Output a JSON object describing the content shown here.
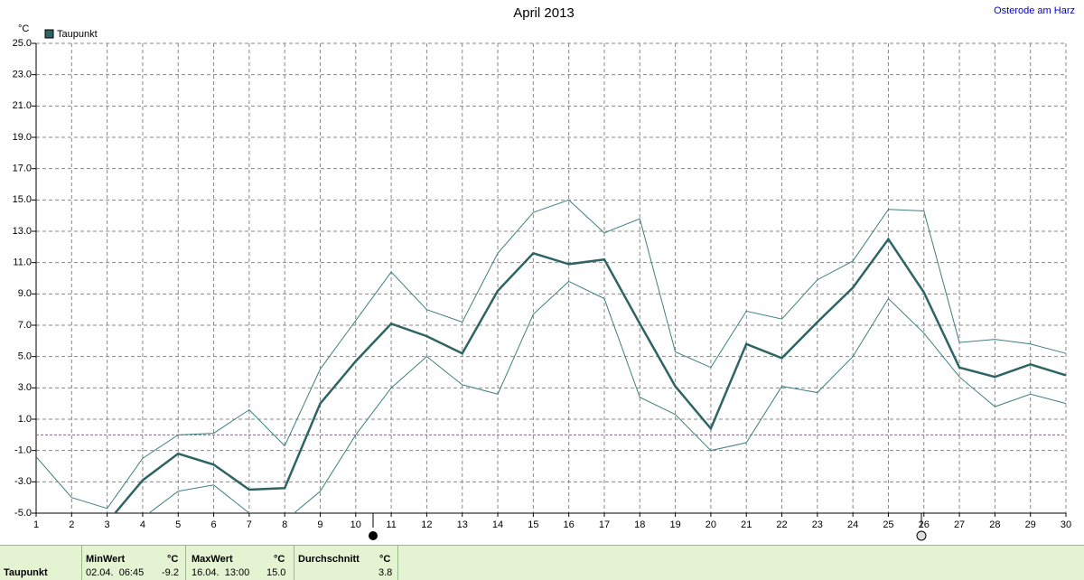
{
  "chart_data": {
    "type": "line",
    "title": "April 2013",
    "location": "Osterode am Harz",
    "y_label": "°C",
    "x": [
      1,
      2,
      3,
      4,
      5,
      6,
      7,
      8,
      9,
      10,
      11,
      12,
      13,
      14,
      15,
      16,
      17,
      18,
      19,
      20,
      21,
      22,
      23,
      24,
      25,
      26,
      27,
      28,
      29,
      30
    ],
    "series": [
      {
        "name": "Taupunkt",
        "color": "#2f6464",
        "values": [
          null,
          null,
          -5.6,
          -2.9,
          -1.2,
          -1.9,
          -3.5,
          -3.4,
          2.0,
          4.7,
          7.1,
          6.3,
          5.2,
          9.2,
          11.6,
          10.9,
          11.2,
          7.1,
          3.1,
          0.4,
          5.8,
          4.9,
          7.2,
          9.4,
          12.5,
          9.1,
          4.3,
          3.7,
          4.5,
          3.8
        ]
      },
      {
        "color": "#3f7f7f",
        "values": [
          -1.4,
          -4.0,
          -4.7,
          -1.5,
          0.0,
          0.1,
          1.6,
          -0.7,
          4.2,
          7.3,
          10.4,
          8.0,
          7.2,
          11.6,
          14.2,
          15.0,
          12.9,
          13.8,
          5.3,
          4.3,
          7.9,
          7.4,
          9.9,
          11.1,
          14.4,
          14.3,
          5.9,
          6.1,
          5.8,
          5.2
        ]
      },
      {
        "color": "#3f7f7f",
        "values": [
          null,
          null,
          null,
          -5.3,
          -3.6,
          -3.2,
          -5.0,
          -5.5,
          -3.6,
          0.0,
          3.0,
          5.0,
          3.2,
          2.6,
          7.7,
          9.8,
          8.7,
          2.4,
          1.3,
          -1.0,
          -0.5,
          3.1,
          2.7,
          5.0,
          8.7,
          6.5,
          3.7,
          1.8,
          2.6,
          2.0
        ]
      }
    ],
    "xlim": [
      1,
      30
    ],
    "xticks": [
      1,
      2,
      3,
      4,
      5,
      6,
      7,
      8,
      9,
      10,
      11,
      12,
      13,
      14,
      15,
      16,
      17,
      18,
      19,
      20,
      21,
      22,
      23,
      24,
      25,
      26,
      27,
      28,
      29,
      30
    ],
    "ylim": [
      -5,
      25
    ],
    "yticks": [
      {
        "value": -5,
        "label": "-5.0"
      },
      {
        "value": -3,
        "label": "-3.0"
      },
      {
        "value": -1,
        "label": "-1.0"
      },
      {
        "value": 1,
        "label": "1.0"
      },
      {
        "value": 3,
        "label": "3.0"
      },
      {
        "value": 5,
        "label": "5.0"
      },
      {
        "value": 7,
        "label": "7.0"
      },
      {
        "value": 9,
        "label": "9.0"
      },
      {
        "value": 11,
        "label": "11.0"
      },
      {
        "value": 13,
        "label": "13.0"
      },
      {
        "value": 15,
        "label": "15.0"
      },
      {
        "value": 17,
        "label": "17.0"
      },
      {
        "value": 19,
        "label": "19.0"
      },
      {
        "value": 21,
        "label": "21.0"
      },
      {
        "value": 23,
        "label": "23.0"
      },
      {
        "value": 25,
        "label": "25.0"
      }
    ],
    "grid": true,
    "reference_line": 0,
    "reference_color": "#cc33cc"
  },
  "stats": {
    "label": "Taupunkt",
    "min_header": "MinWert",
    "min_unit": "°C",
    "min_time": "02.04.  06:45",
    "min_value": "-9.2",
    "max_header": "MaxWert",
    "max_unit": "°C",
    "max_time": "16.04.  13:00",
    "max_value": "15.0",
    "avg_header": "Durchschnitt",
    "avg_unit": "°C",
    "avg_value": "3.8"
  }
}
